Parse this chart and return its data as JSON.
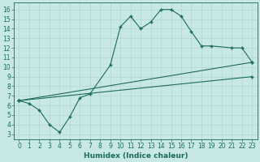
{
  "xlabel": "Humidex (Indice chaleur)",
  "bg_color": "#c8e8e8",
  "line_color": "#1a6b5a",
  "grid_color_major": "#b0d0d0",
  "grid_color_minor": "#d0e8e8",
  "xlim": [
    -0.5,
    23.5
  ],
  "ylim": [
    2.5,
    16.7
  ],
  "xticks": [
    0,
    1,
    2,
    3,
    4,
    5,
    6,
    7,
    8,
    9,
    10,
    11,
    12,
    13,
    14,
    15,
    16,
    17,
    18,
    19,
    20,
    21,
    22,
    23
  ],
  "yticks": [
    3,
    4,
    5,
    6,
    7,
    8,
    9,
    10,
    11,
    12,
    13,
    14,
    15,
    16
  ],
  "curve_x": [
    0,
    1,
    2,
    3,
    4,
    5,
    6,
    7,
    9,
    10,
    11,
    12,
    13,
    14,
    15,
    16,
    17,
    18,
    19,
    21,
    22,
    23
  ],
  "curve_y": [
    6.5,
    6.2,
    5.5,
    4.0,
    3.2,
    4.8,
    6.8,
    7.2,
    10.2,
    14.2,
    15.3,
    14.0,
    14.7,
    16.0,
    16.0,
    15.3,
    13.7,
    12.2,
    12.2,
    12.0,
    12.0,
    10.5
  ],
  "line2_x": [
    0,
    23
  ],
  "line2_y": [
    6.5,
    10.5
  ],
  "line3_x": [
    0,
    23
  ],
  "line3_y": [
    6.5,
    9.0
  ],
  "font_size_ticks": 5.5,
  "font_size_xlabel": 6.5
}
